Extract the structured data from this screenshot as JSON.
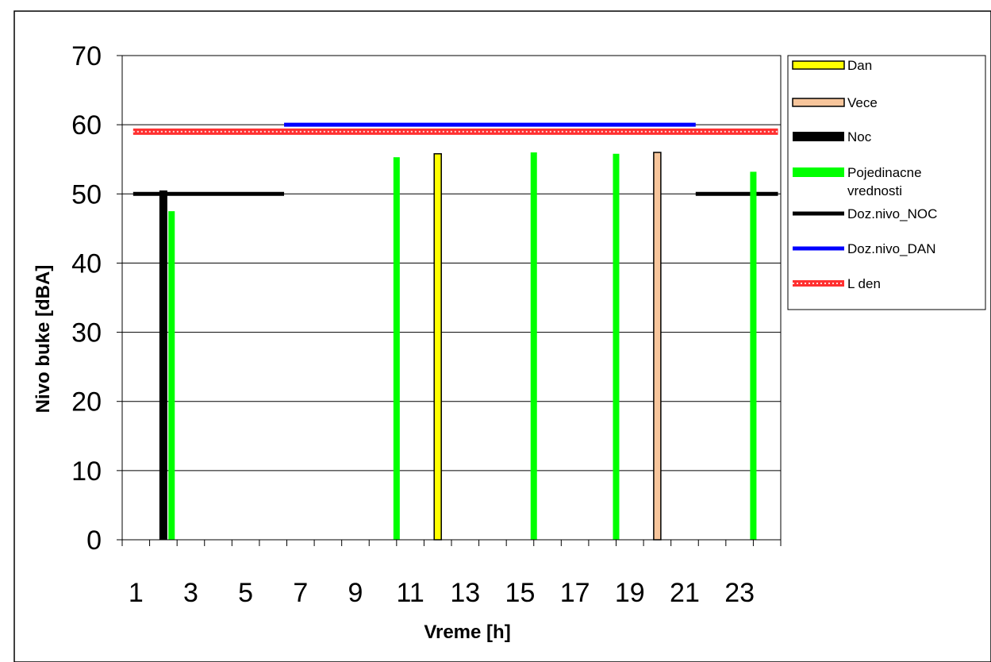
{
  "chart_data": {
    "type": "bar",
    "xlabel": "Vreme [h]",
    "ylabel": "Nivo buke [dBA]",
    "ylim": [
      0,
      70
    ],
    "yticks": [
      0,
      10,
      20,
      30,
      40,
      50,
      60,
      70
    ],
    "xlim": [
      0.5,
      24.5
    ],
    "x_tick_labels": [
      "1",
      "3",
      "5",
      "7",
      "9",
      "11",
      "13",
      "15",
      "17",
      "19",
      "21",
      "23"
    ],
    "grid": true,
    "legend_position": "right",
    "legend": [
      {
        "label": "Dan",
        "kind": "bar",
        "color": "#ffff00"
      },
      {
        "label": "Vece",
        "kind": "bar",
        "color": "#f7c59b"
      },
      {
        "label": "Noc",
        "kind": "bar",
        "color": "#000000"
      },
      {
        "label": "Pojedinacne vrednosti",
        "kind": "bar",
        "color": "#00ff00"
      },
      {
        "label": "Doz.nivo_NOC",
        "kind": "line",
        "color": "#000000"
      },
      {
        "label": "Doz.nivo_DAN",
        "kind": "line",
        "color": "#0000ff"
      },
      {
        "label": "L den",
        "kind": "line",
        "color": "#ff0000"
      }
    ],
    "series": [
      {
        "name": "Dan",
        "x": [
          12
        ],
        "values": [
          55.8
        ],
        "color": "#ffff00"
      },
      {
        "name": "Vece",
        "x": [
          20
        ],
        "values": [
          56
        ],
        "color": "#f7c59b"
      },
      {
        "name": "Noc",
        "x": [
          2
        ],
        "values": [
          50.5
        ],
        "color": "#000000"
      },
      {
        "name": "Pojedinacne vrednosti",
        "x": [
          2.3,
          10.5,
          15.5,
          18.5,
          23.5
        ],
        "values": [
          47.5,
          55.3,
          56,
          55.8,
          53.2
        ],
        "color": "#00ff00"
      },
      {
        "name": "Doz.nivo_NOC",
        "segments": [
          {
            "x": [
              0.9,
              6.4
            ],
            "value": 50
          },
          {
            "x": [
              21.4,
              24.4
            ],
            "value": 50
          }
        ],
        "color": "#000000"
      },
      {
        "name": "Doz.nivo_DAN",
        "segments": [
          {
            "x": [
              6.4,
              21.4
            ],
            "value": 60
          }
        ],
        "color": "#0000ff"
      },
      {
        "name": "L den",
        "segments": [
          {
            "x": [
              0.9,
              24.4
            ],
            "value": 59
          }
        ],
        "color": "#ff0000"
      }
    ]
  }
}
